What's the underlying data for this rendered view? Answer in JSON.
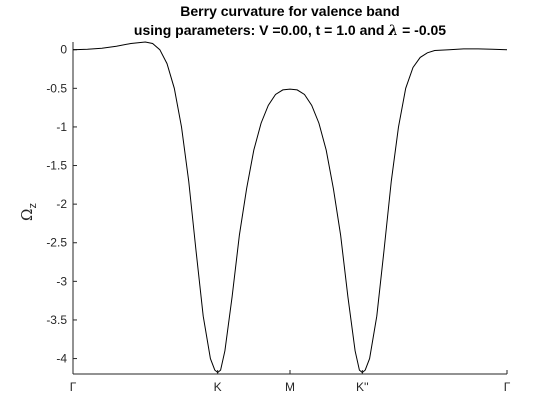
{
  "chart_data": {
    "type": "line",
    "title": "Berry curvature for valence band",
    "subtitle_prefix": "using parameters: V =0.00, t = 1.0 and ",
    "subtitle_lambda": "λ",
    "subtitle_suffix": " = -0.05",
    "xlabel": "",
    "ylabel": "Ω",
    "ylabel_sub": "z",
    "ylim": [
      -4.2,
      0.1
    ],
    "yticks": [
      0,
      -0.5,
      -1,
      -1.5,
      -2,
      -2.5,
      -3,
      -3.5,
      -4
    ],
    "ytick_labels": [
      "0",
      "-0.5",
      "-1",
      "-1.5",
      "-2",
      "-2.5",
      "-3",
      "-3.5",
      "-4"
    ],
    "xlim": [
      0,
      3
    ],
    "xticks": [
      0,
      1,
      1.5,
      2,
      3
    ],
    "xtick_labels": [
      "Γ",
      "K",
      "M",
      "K''",
      "Γ"
    ],
    "grid": false,
    "series": [
      {
        "x": [
          0,
          0.1,
          0.2,
          0.3,
          0.4,
          0.5,
          0.55,
          0.6,
          0.65,
          0.7,
          0.75,
          0.8,
          0.85,
          0.9,
          0.95,
          0.98,
          1.0,
          1.02,
          1.05,
          1.1,
          1.15,
          1.2,
          1.25,
          1.3,
          1.35,
          1.4,
          1.45,
          1.5,
          1.55,
          1.6,
          1.65,
          1.7,
          1.75,
          1.8,
          1.85,
          1.9,
          1.95,
          1.98,
          2.0,
          2.02,
          2.05,
          2.1,
          2.15,
          2.2,
          2.25,
          2.3,
          2.35,
          2.4,
          2.45,
          2.5,
          2.6,
          2.7,
          2.8,
          2.9,
          3.0
        ],
        "y": [
          0.0,
          0.005,
          0.02,
          0.045,
          0.08,
          0.1,
          0.08,
          0.0,
          -0.18,
          -0.5,
          -1.0,
          -1.7,
          -2.6,
          -3.45,
          -4.0,
          -4.15,
          -4.18,
          -4.15,
          -3.9,
          -3.2,
          -2.4,
          -1.8,
          -1.3,
          -0.95,
          -0.72,
          -0.58,
          -0.52,
          -0.51,
          -0.52,
          -0.58,
          -0.72,
          -0.95,
          -1.3,
          -1.8,
          -2.4,
          -3.2,
          -3.9,
          -4.15,
          -4.18,
          -4.15,
          -4.0,
          -3.45,
          -2.6,
          -1.7,
          -1.0,
          -0.5,
          -0.23,
          -0.1,
          -0.04,
          -0.01,
          0.0,
          0.01,
          0.01,
          0.005,
          0.0
        ]
      }
    ]
  }
}
